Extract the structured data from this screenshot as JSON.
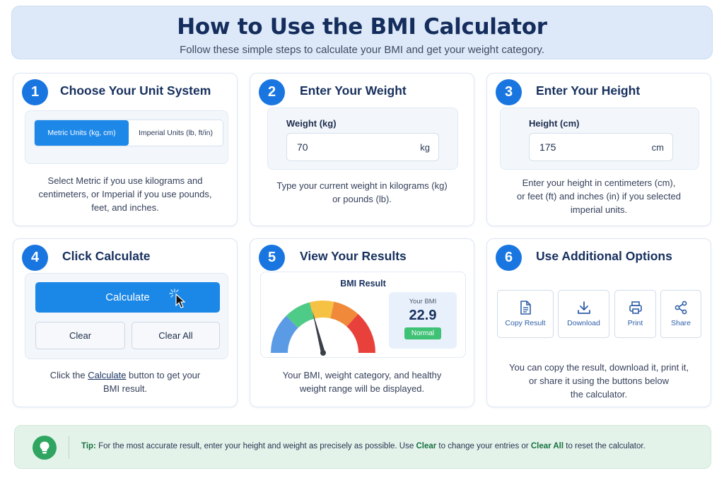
{
  "header": {
    "title": "How to Use the BMI Calculator",
    "subtitle": "Follow these simple steps to calculate your BMI and get your weight category."
  },
  "steps": [
    {
      "number": "1",
      "title": "Choose Your Unit System",
      "metric_label": "Metric Units (kg, cm)",
      "imperial_label": "Imperial Units (lb, ft/in)",
      "desc_lines": [
        "Select Metric if you use kilograms and",
        "centimeters, or Imperial if you use pounds,",
        "feet, and inches."
      ]
    },
    {
      "number": "2",
      "title": "Enter Your Weight",
      "field_label": "Weight (kg)",
      "field_value": "70",
      "field_unit": "kg",
      "desc_lines": [
        "Type your current weight in kilograms (kg)",
        "or pounds (lb)."
      ]
    },
    {
      "number": "3",
      "title": "Enter Your Height",
      "field_label": "Height (cm)",
      "field_value": "175",
      "field_unit": "cm",
      "desc_lines": [
        "Enter your height in centimeters (cm),",
        "or feet (ft) and inches (in) if you selected",
        "imperial units."
      ]
    },
    {
      "number": "4",
      "title": "Click Calculate",
      "calculate_label": "Calculate",
      "clear_label": "Clear",
      "clear_all_label": "Clear All",
      "desc_pre": "Click the ",
      "desc_link": "Calculate",
      "desc_post": " button to get your",
      "desc_line2": "BMI result."
    },
    {
      "number": "5",
      "title": "View Your Results",
      "panel_title": "BMI Result",
      "your_bmi_label": "Your BMI",
      "bmi_value": "22.9",
      "category": "Normal",
      "gauge_level": 0.42,
      "desc_lines": [
        "Your BMI, weight category, and healthy",
        "weight range will be displayed."
      ]
    },
    {
      "number": "6",
      "title": "Use Additional Options",
      "options": [
        {
          "label": "Copy Result",
          "icon": "document-icon"
        },
        {
          "label": "Download",
          "icon": "download-icon"
        },
        {
          "label": "Print",
          "icon": "printer-icon"
        },
        {
          "label": "Share",
          "icon": "share-icon"
        }
      ],
      "desc_lines": [
        "You can copy the result, download it, print it,",
        "or share it using the buttons below",
        "the calculator."
      ]
    }
  ],
  "tip": {
    "label": "Tip:",
    "text1": " For the most accurate result, enter your height and weight as precisely as possible. Use ",
    "clear": "Clear",
    "text2": " to change your entries or ",
    "clear_all": "Clear All",
    "text3": " to reset the calculator.",
    "icon": "lightbulb-icon"
  },
  "colors": {
    "accent": "#1976e0",
    "gauge_blue": "#5b9be6",
    "gauge_green": "#4ecb86",
    "gauge_yellow": "#f5c244",
    "gauge_orange": "#f08a3a",
    "gauge_red": "#e8413b",
    "normal_badge": "#3fc276"
  }
}
